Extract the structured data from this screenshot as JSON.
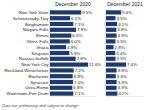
{
  "chart_data": [
    {
      "type": "bar",
      "orientation": "horizontal",
      "title": "December 2020",
      "categories": [
        "New York State",
        "Schenectady-Troy",
        "Binghamton",
        "Niagara Falls",
        "Elmira",
        "Glens Falls",
        "Ithaca",
        "Kingston",
        "Nassau-Suffolk",
        "New York City",
        "Rockland-Westchester",
        "Rochester",
        "Syracuse",
        "Utica-Rome",
        "Watertown-Fort Drum"
      ],
      "values": [
        9.5,
        6.1,
        7.1,
        7.9,
        6.5,
        6.0,
        4.9,
        5.9,
        7.8,
        11.6,
        7.2,
        6.9,
        7.0,
        6.8,
        7.1
      ],
      "value_labels": [
        "9.5%",
        "6.1%",
        "7.1%",
        "7.9%",
        "6.5%",
        "6.0%",
        "4.9%",
        "5.9%",
        "7.8%",
        "11.6%",
        "7.2%",
        "6.9%",
        "7.0%",
        "6.8%",
        "7.1%"
      ],
      "data_labels": true,
      "color": "#1f3a6e",
      "xlim": [
        0,
        14
      ],
      "tick_labels": false,
      "annotation": "Data are preliminary and subject to change"
    },
    {
      "type": "bar",
      "orientation": "horizontal",
      "title": "December 2021",
      "values": [
        5.6,
        3.5,
        4.1,
        3.8,
        3.9,
        3.5,
        2.8,
        3.4,
        3.5,
        7.4,
        3.9,
        3.6,
        3.9,
        3.9,
        4.2
      ],
      "value_labels": [
        "5.6%",
        "3.5%",
        "4.1%",
        "3.8%",
        "3.9%",
        "3.5%",
        "2.8%",
        "3.4%",
        "3.5%",
        "7.4%",
        "3.9%",
        "3.6%",
        "3.9%",
        "3.9%",
        "4.2%"
      ],
      "data_labels": true,
      "color": "#1f3a6e",
      "xlim": [
        0,
        14
      ],
      "tick_labels": false
    }
  ]
}
